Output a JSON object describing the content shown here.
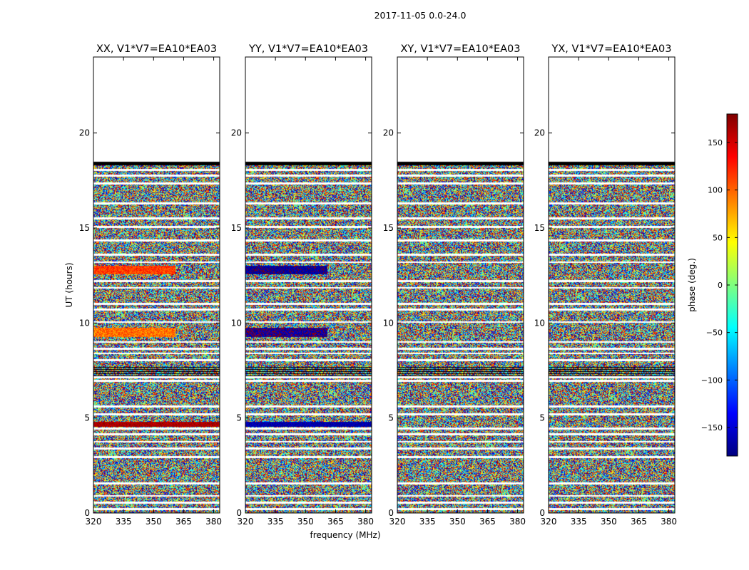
{
  "figure_title": "2017-11-05 0.0-24.0",
  "chart_data": {
    "type": "heatmap",
    "suptitle": "2017-11-05 0.0-24.0",
    "xlabel": "frequency (MHz)",
    "ylabel": "UT (hours)",
    "xlim": [
      320,
      383
    ],
    "ylim": [
      0,
      24
    ],
    "xticks": [
      320,
      335,
      350,
      365,
      380
    ],
    "yticks": [
      0,
      5,
      10,
      15,
      20
    ],
    "data_coverage_hours": [
      0,
      18.5
    ],
    "colorbar": {
      "label": "phase (deg.)",
      "range": [
        -180,
        180
      ],
      "ticks": [
        -150,
        -100,
        -50,
        0,
        50,
        100,
        150
      ],
      "colormap": "jet",
      "colors": [
        "#00007f",
        "#0000ff",
        "#007fff",
        "#00ffff",
        "#7fff7f",
        "#ffff00",
        "#ff7f00",
        "#ff0000",
        "#7f0000"
      ]
    },
    "panels": [
      {
        "title": "XX, V1*V7=EA10*EA03",
        "bands": [
          {
            "y0": 12.55,
            "y1": 13.0,
            "x0": 320,
            "x1": 361,
            "phase_mean": 115,
            "spread": 25
          },
          {
            "y0": 9.25,
            "y1": 9.75,
            "x0": 320,
            "x1": 361,
            "phase_mean": 95,
            "spread": 30
          },
          {
            "y0": 4.55,
            "y1": 4.8,
            "x0": 320,
            "x1": 383,
            "phase_mean": 165,
            "spread": 15
          }
        ]
      },
      {
        "title": "YY, V1*V7=EA10*EA03",
        "bands": [
          {
            "y0": 12.55,
            "y1": 13.0,
            "x0": 320,
            "x1": 361,
            "phase_mean": -170,
            "spread": 15
          },
          {
            "y0": 9.25,
            "y1": 9.75,
            "x0": 320,
            "x1": 361,
            "phase_mean": -170,
            "spread": 25
          },
          {
            "y0": 4.55,
            "y1": 4.8,
            "x0": 320,
            "x1": 383,
            "phase_mean": -165,
            "spread": 15
          }
        ]
      },
      {
        "title": "XY, V1*V7=EA10*EA03",
        "bands": []
      },
      {
        "title": "YX, V1*V7=EA10*EA03",
        "bands": []
      }
    ],
    "gap_rows_hours": [
      0.2,
      0.55,
      0.9,
      1.55,
      2.95,
      3.4,
      3.75,
      4.15,
      4.45,
      5.2,
      5.6,
      6.95,
      7.15,
      8.05,
      8.4,
      8.65,
      9.0,
      10.05,
      10.7,
      11.0,
      11.85,
      12.2,
      13.2,
      13.6,
      14.35,
      15.05,
      15.5,
      16.3,
      17.35,
      17.75,
      18.05
    ]
  }
}
